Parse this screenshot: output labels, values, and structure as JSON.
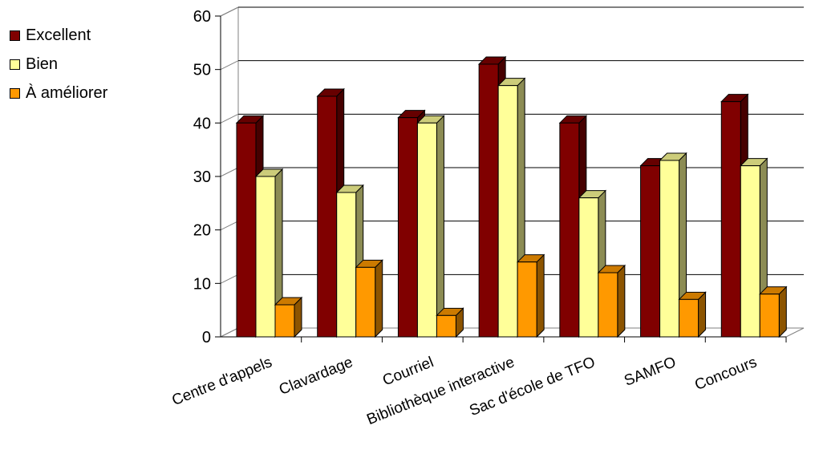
{
  "chart_data": {
    "type": "bar",
    "categories": [
      "Centre d'appels",
      "Clavardage",
      "Courriel",
      "Bibliothèque interactive",
      "Sac d'école de TFO",
      "SAMFO",
      "Concours"
    ],
    "series": [
      {
        "name": "Excellent",
        "values": [
          40,
          45,
          41,
          51,
          40,
          32,
          44
        ],
        "color": "#800000"
      },
      {
        "name": "Bien",
        "values": [
          30,
          27,
          40,
          47,
          26,
          33,
          32
        ],
        "color": "#ffff99"
      },
      {
        "name": "À améliorer",
        "values": [
          6,
          13,
          4,
          14,
          12,
          7,
          8
        ],
        "color": "#ff9900"
      }
    ],
    "ylim": [
      0,
      60
    ],
    "yticks": [
      "0",
      "10",
      "20",
      "30",
      "40",
      "50",
      "60"
    ],
    "grid": true,
    "legend_position": "top-left",
    "three_d": true
  }
}
